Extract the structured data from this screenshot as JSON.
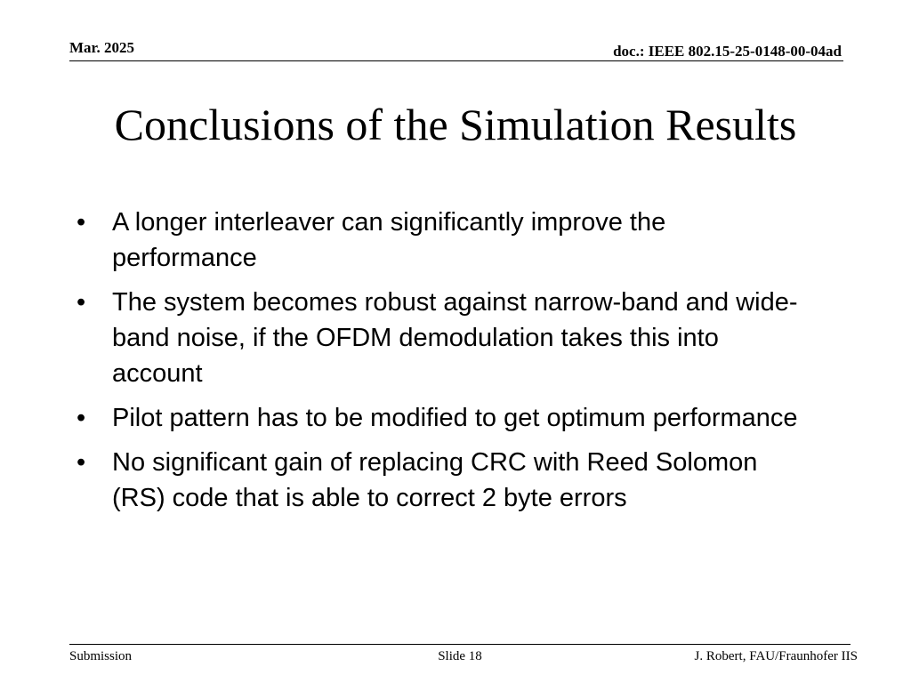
{
  "header": {
    "date": "Mar. 2025",
    "doc_id": "doc.: IEEE 802.15-25-0148-00-04ad"
  },
  "slide": {
    "title": "Conclusions of the Simulation Results",
    "bullet_glyph": "•",
    "bullets": [
      "A longer interleaver can significantly improve the performance",
      "The system becomes robust against narrow-band and wide-band noise, if the OFDM demodulation takes this into account",
      "Pilot pattern has to be modified to get optimum performance",
      "No significant gain of replacing CRC with Reed Solomon (RS) code that is able to correct 2 byte errors"
    ]
  },
  "footer": {
    "left": "Submission",
    "center": "Slide 18",
    "right": "J. Robert, FAU/Fraunhofer IIS"
  }
}
